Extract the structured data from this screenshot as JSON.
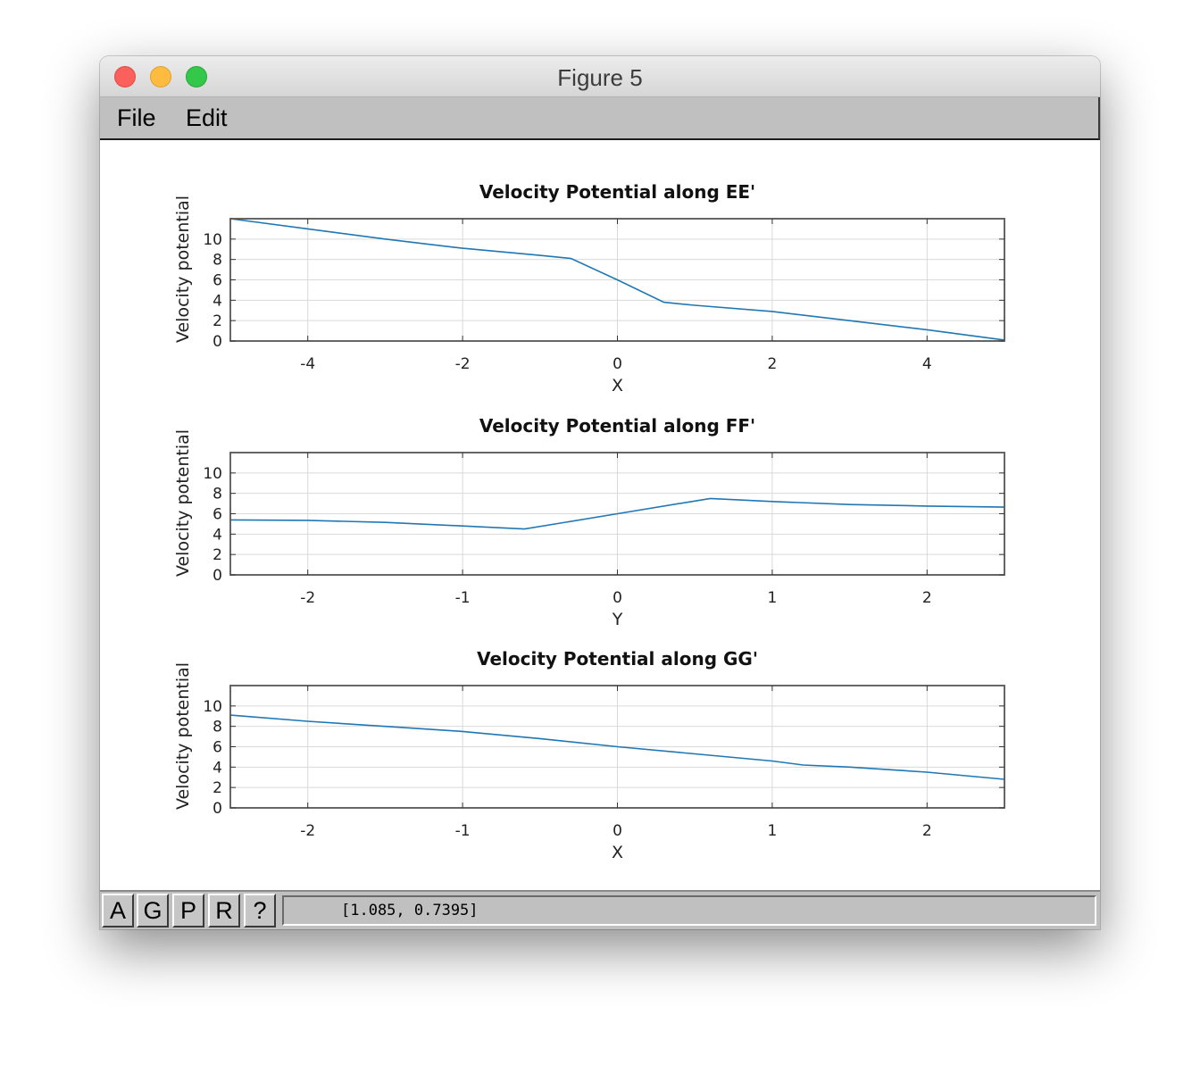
{
  "window": {
    "title": "Figure 5"
  },
  "menu": {
    "file": "File",
    "edit": "Edit"
  },
  "toolbar": {
    "buttons": [
      "A",
      "G",
      "P",
      "R",
      "?"
    ],
    "coordinates": "[1.085, 0.7395]"
  },
  "colors": {
    "line": "#1f77b4",
    "menubar": "#c0c0c0",
    "grid": "#d9d9d9"
  },
  "chart_data": [
    {
      "type": "line",
      "title": "Velocity Potential along EE'",
      "xlabel": "X",
      "ylabel": "Velocity potential",
      "xlim": [
        -5,
        5
      ],
      "ylim": [
        0,
        12
      ],
      "xticks": [
        -4,
        -2,
        0,
        2,
        4
      ],
      "yticks": [
        0,
        2,
        4,
        6,
        8,
        10
      ],
      "grid": true,
      "x": [
        -5,
        -4,
        -3,
        -2,
        -1,
        -0.6,
        0,
        0.6,
        1,
        2,
        3,
        4,
        5
      ],
      "y": [
        12,
        11,
        10,
        9.1,
        8.4,
        8.1,
        6,
        3.8,
        3.5,
        2.9,
        2.0,
        1.1,
        0.1
      ]
    },
    {
      "type": "line",
      "title": "Velocity Potential along FF'",
      "xlabel": "Y",
      "ylabel": "Velocity potential",
      "xlim": [
        -2.5,
        2.5
      ],
      "ylim": [
        0,
        12
      ],
      "xticks": [
        -2,
        -1,
        0,
        1,
        2
      ],
      "yticks": [
        0,
        2,
        4,
        6,
        8,
        10
      ],
      "grid": true,
      "x": [
        -2.5,
        -2,
        -1.5,
        -1,
        -0.6,
        0,
        0.6,
        1,
        1.5,
        2,
        2.5
      ],
      "y": [
        5.4,
        5.35,
        5.15,
        4.8,
        4.5,
        6,
        7.5,
        7.2,
        6.9,
        6.75,
        6.65
      ]
    },
    {
      "type": "line",
      "title": "Velocity Potential along GG'",
      "xlabel": "X",
      "ylabel": "Velocity potential",
      "xlim": [
        -2.5,
        2.5
      ],
      "ylim": [
        0,
        12
      ],
      "xticks": [
        -2,
        -1,
        0,
        1,
        2
      ],
      "yticks": [
        0,
        2,
        4,
        6,
        8,
        10
      ],
      "grid": true,
      "x": [
        -2.5,
        -2,
        -1.5,
        -1,
        -0.5,
        0,
        0.5,
        1,
        1.2,
        1.5,
        2,
        2.5
      ],
      "y": [
        9.1,
        8.5,
        8.0,
        7.5,
        6.8,
        6.0,
        5.3,
        4.6,
        4.2,
        4.0,
        3.5,
        2.8
      ]
    }
  ]
}
